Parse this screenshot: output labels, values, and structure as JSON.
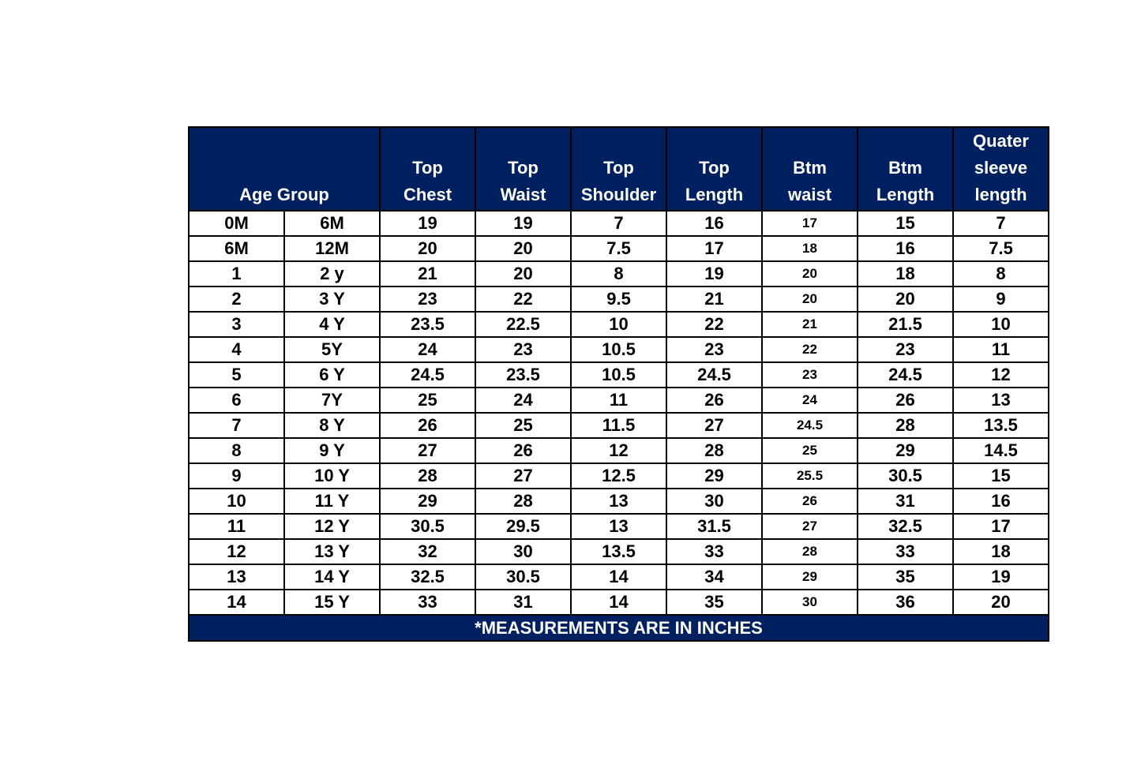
{
  "table": {
    "header": [
      {
        "lines": [
          "Age Group"
        ]
      },
      {
        "lines": [
          "Top",
          "Chest"
        ]
      },
      {
        "lines": [
          "Top",
          "Waist"
        ]
      },
      {
        "lines": [
          "Top",
          "Shoulder"
        ]
      },
      {
        "lines": [
          "Top",
          "Length"
        ]
      },
      {
        "lines": [
          "Btm",
          "waist"
        ]
      },
      {
        "lines": [
          "Btm",
          "Length"
        ]
      },
      {
        "lines": [
          "Quater",
          "sleeve",
          "length"
        ]
      }
    ],
    "rows": [
      [
        "0M",
        "6M",
        "19",
        "19",
        "7",
        "16",
        "17",
        "15",
        "7"
      ],
      [
        "6M",
        "12M",
        "20",
        "20",
        "7.5",
        "17",
        "18",
        "16",
        "7.5"
      ],
      [
        "1",
        "2 y",
        "21",
        "20",
        "8",
        "19",
        "20",
        "18",
        "8"
      ],
      [
        "2",
        "3 Y",
        "23",
        "22",
        "9.5",
        "21",
        "20",
        "20",
        "9"
      ],
      [
        "3",
        "4 Y",
        "23.5",
        "22.5",
        "10",
        "22",
        "21",
        "21.5",
        "10"
      ],
      [
        "4",
        "5Y",
        "24",
        "23",
        "10.5",
        "23",
        "22",
        "23",
        "11"
      ],
      [
        "5",
        "6 Y",
        "24.5",
        "23.5",
        "10.5",
        "24.5",
        "23",
        "24.5",
        "12"
      ],
      [
        "6",
        "7Y",
        "25",
        "24",
        "11",
        "26",
        "24",
        "26",
        "13"
      ],
      [
        "7",
        "8 Y",
        "26",
        "25",
        "11.5",
        "27",
        "24.5",
        "28",
        "13.5"
      ],
      [
        "8",
        "9 Y",
        "27",
        "26",
        "12",
        "28",
        "25",
        "29",
        "14.5"
      ],
      [
        "9",
        "10 Y",
        "28",
        "27",
        "12.5",
        "29",
        "25.5",
        "30.5",
        "15"
      ],
      [
        "10",
        "11 Y",
        "29",
        "28",
        "13",
        "30",
        "26",
        "31",
        "16"
      ],
      [
        "11",
        "12 Y",
        "30.5",
        "29.5",
        "13",
        "31.5",
        "27",
        "32.5",
        "17"
      ],
      [
        "12",
        "13 Y",
        "32",
        "30",
        "13.5",
        "33",
        "28",
        "33",
        "18"
      ],
      [
        "13",
        "14 Y",
        "32.5",
        "30.5",
        "14",
        "34",
        "29",
        "35",
        "19"
      ],
      [
        "14",
        "15 Y",
        "33",
        "31",
        "14",
        "35",
        "30",
        "36",
        "20"
      ]
    ],
    "footer": "*MEASUREMENTS ARE IN INCHES"
  }
}
